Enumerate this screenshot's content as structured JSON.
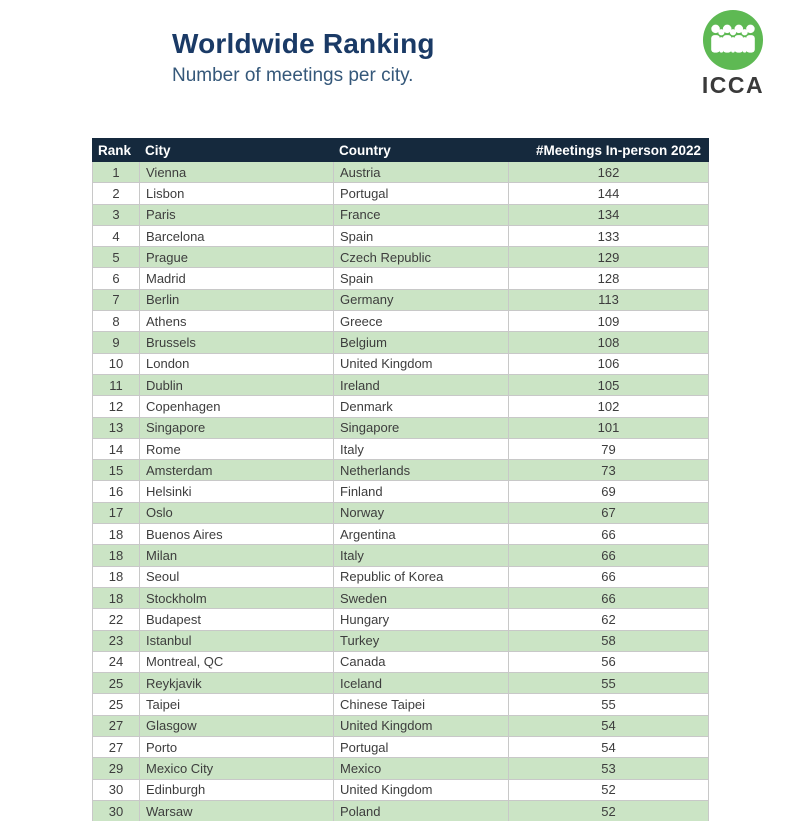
{
  "page": {
    "title": "Worldwide Ranking",
    "subtitle": "Number of meetings per city."
  },
  "logo": {
    "text": "ICCA",
    "icon": "people-group-icon"
  },
  "colors": {
    "title": "#1a3a66",
    "subtitle": "#35587a",
    "table_header_bg": "#15293d",
    "table_header_text": "#ffffff",
    "row_green": "#cbe4c5",
    "row_white": "#ffffff",
    "border": "#c8c8c8",
    "cell_text": "#3d3d3d",
    "logo_green": "#5eb953",
    "logo_text": "#3a3a3a"
  },
  "chart_data": {
    "type": "table",
    "title": "Worldwide Ranking",
    "subtitle": "Number of meetings per city.",
    "columns": [
      "Rank",
      "City",
      "Country",
      "#Meetings In-person 2022"
    ],
    "layout": {
      "row_striping": "odd rows green, even rows white",
      "column_alignment": [
        "center",
        "left",
        "left",
        "center"
      ]
    },
    "rows": [
      [
        1,
        "Vienna",
        "Austria",
        162
      ],
      [
        2,
        "Lisbon",
        "Portugal",
        144
      ],
      [
        3,
        "Paris",
        "France",
        134
      ],
      [
        4,
        "Barcelona",
        "Spain",
        133
      ],
      [
        5,
        "Prague",
        "Czech Republic",
        129
      ],
      [
        6,
        "Madrid",
        "Spain",
        128
      ],
      [
        7,
        "Berlin",
        "Germany",
        113
      ],
      [
        8,
        "Athens",
        "Greece",
        109
      ],
      [
        9,
        "Brussels",
        "Belgium",
        108
      ],
      [
        10,
        "London",
        "United Kingdom",
        106
      ],
      [
        11,
        "Dublin",
        "Ireland",
        105
      ],
      [
        12,
        "Copenhagen",
        "Denmark",
        102
      ],
      [
        13,
        "Singapore",
        "Singapore",
        101
      ],
      [
        14,
        "Rome",
        "Italy",
        79
      ],
      [
        15,
        "Amsterdam",
        "Netherlands",
        73
      ],
      [
        16,
        "Helsinki",
        "Finland",
        69
      ],
      [
        17,
        "Oslo",
        "Norway",
        67
      ],
      [
        18,
        "Buenos Aires",
        "Argentina",
        66
      ],
      [
        18,
        "Milan",
        "Italy",
        66
      ],
      [
        18,
        "Seoul",
        "Republic of Korea",
        66
      ],
      [
        18,
        "Stockholm",
        "Sweden",
        66
      ],
      [
        22,
        "Budapest",
        "Hungary",
        62
      ],
      [
        23,
        "Istanbul",
        "Turkey",
        58
      ],
      [
        24,
        "Montreal, QC",
        "Canada",
        56
      ],
      [
        25,
        "Reykjavik",
        "Iceland",
        55
      ],
      [
        25,
        "Taipei",
        "Chinese Taipei",
        55
      ],
      [
        27,
        "Glasgow",
        "United Kingdom",
        54
      ],
      [
        27,
        "Porto",
        "Portugal",
        54
      ],
      [
        29,
        "Mexico City",
        "Mexico",
        53
      ],
      [
        30,
        "Edinburgh",
        "United Kingdom",
        52
      ],
      [
        30,
        "Warsaw",
        "Poland",
        52
      ]
    ]
  }
}
